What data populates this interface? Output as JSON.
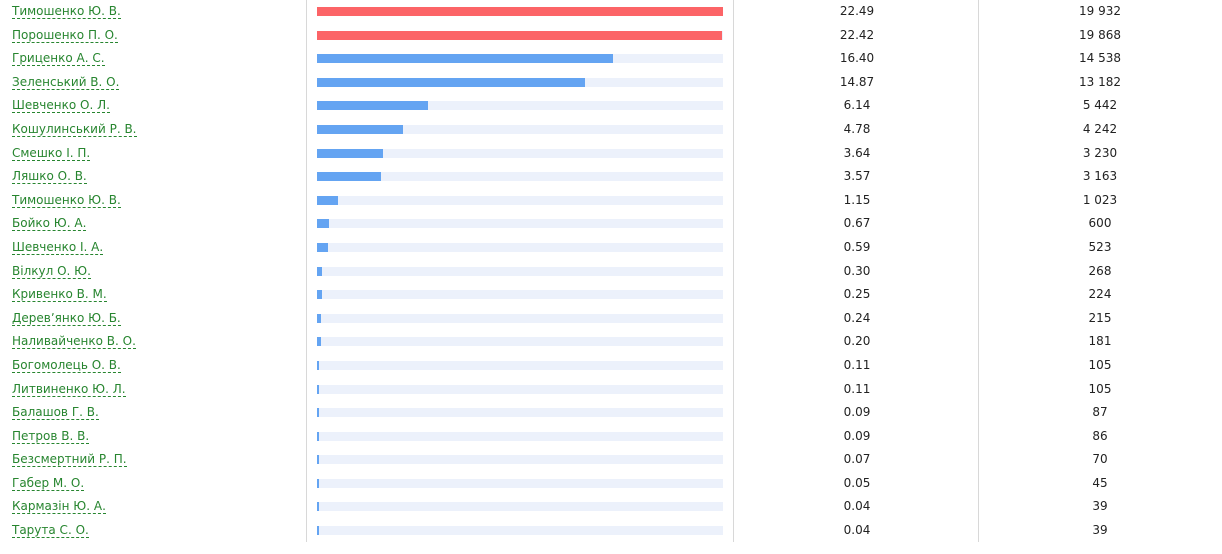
{
  "colors": {
    "name_link": "#27852f",
    "bar_leader": "#fc6467",
    "bar_default": "#64a4f2",
    "bar_track": "#ecf1fb"
  },
  "candidates": [
    {
      "name": "Тимошенко Ю. В.",
      "percent": "22.49",
      "votes": "19 932",
      "value": 22.49,
      "leader": true
    },
    {
      "name": "Порошенко П. О.",
      "percent": "22.42",
      "votes": "19 868",
      "value": 22.42,
      "leader": true
    },
    {
      "name": "Гриценко А. С.",
      "percent": "16.40",
      "votes": "14 538",
      "value": 16.4,
      "leader": false
    },
    {
      "name": "Зеленський В. О.",
      "percent": "14.87",
      "votes": "13 182",
      "value": 14.87,
      "leader": false
    },
    {
      "name": "Шевченко О. Л.",
      "percent": "6.14",
      "votes": "5 442",
      "value": 6.14,
      "leader": false
    },
    {
      "name": "Кошулинський Р. В.",
      "percent": "4.78",
      "votes": "4 242",
      "value": 4.78,
      "leader": false
    },
    {
      "name": "Смешко І. П.",
      "percent": "3.64",
      "votes": "3 230",
      "value": 3.64,
      "leader": false
    },
    {
      "name": "Ляшко О. В.",
      "percent": "3.57",
      "votes": "3 163",
      "value": 3.57,
      "leader": false
    },
    {
      "name": "Тимошенко Ю. В.",
      "percent": "1.15",
      "votes": "1 023",
      "value": 1.15,
      "leader": false
    },
    {
      "name": "Бойко Ю. А.",
      "percent": "0.67",
      "votes": "600",
      "value": 0.67,
      "leader": false
    },
    {
      "name": "Шевченко І. А.",
      "percent": "0.59",
      "votes": "523",
      "value": 0.59,
      "leader": false
    },
    {
      "name": "Вілкул О. Ю.",
      "percent": "0.30",
      "votes": "268",
      "value": 0.3,
      "leader": false
    },
    {
      "name": "Кривенко В. М.",
      "percent": "0.25",
      "votes": "224",
      "value": 0.25,
      "leader": false
    },
    {
      "name": "Деревʼянко Ю. Б.",
      "percent": "0.24",
      "votes": "215",
      "value": 0.24,
      "leader": false
    },
    {
      "name": "Наливайченко В. О.",
      "percent": "0.20",
      "votes": "181",
      "value": 0.2,
      "leader": false
    },
    {
      "name": "Богомолець О. В.",
      "percent": "0.11",
      "votes": "105",
      "value": 0.11,
      "leader": false
    },
    {
      "name": "Литвиненко Ю. Л.",
      "percent": "0.11",
      "votes": "105",
      "value": 0.11,
      "leader": false
    },
    {
      "name": "Балашов Г. В.",
      "percent": "0.09",
      "votes": "87",
      "value": 0.09,
      "leader": false
    },
    {
      "name": "Петров В. В.",
      "percent": "0.09",
      "votes": "86",
      "value": 0.09,
      "leader": false
    },
    {
      "name": "Безсмертний Р. П.",
      "percent": "0.07",
      "votes": "70",
      "value": 0.07,
      "leader": false
    },
    {
      "name": "Габер М. О.",
      "percent": "0.05",
      "votes": "45",
      "value": 0.05,
      "leader": false
    },
    {
      "name": "Кармазін Ю. А.",
      "percent": "0.04",
      "votes": "39",
      "value": 0.04,
      "leader": false
    },
    {
      "name": "Тарута С. О.",
      "percent": "0.04",
      "votes": "39",
      "value": 0.04,
      "leader": false
    }
  ],
  "bar_max_value": 22.49
}
